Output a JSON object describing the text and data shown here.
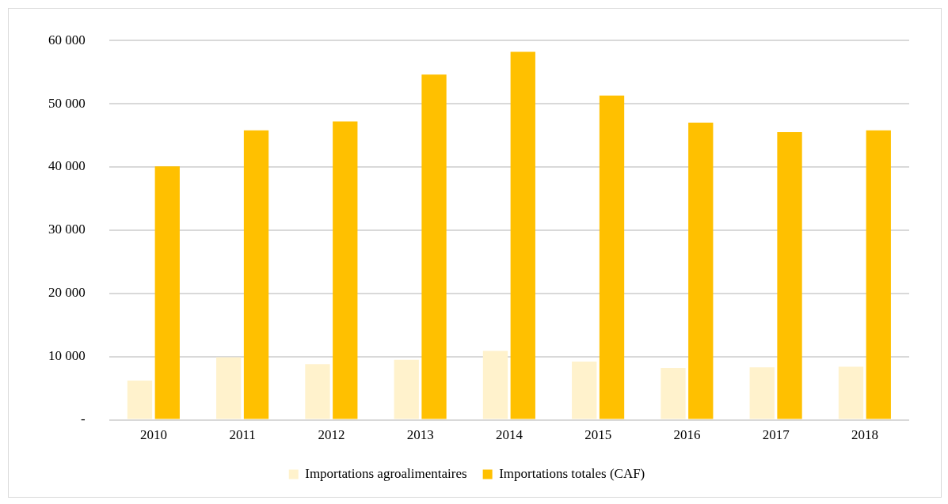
{
  "chart_data": {
    "type": "bar",
    "categories": [
      "2010",
      "2011",
      "2012",
      "2013",
      "2014",
      "2015",
      "2016",
      "2017",
      "2018"
    ],
    "series": [
      {
        "name": "Importations agroalimentaires",
        "color": "#fff2cc",
        "values": [
          6200,
          9900,
          8800,
          9500,
          10900,
          9200,
          8200,
          8300,
          8400
        ]
      },
      {
        "name": "Importations totales (CAF)",
        "color": "#ffc000",
        "values": [
          40100,
          45800,
          47200,
          54600,
          58200,
          51300,
          47000,
          45500,
          45800
        ]
      }
    ],
    "ylim": [
      0,
      60000
    ],
    "yticks": [
      {
        "value": 0,
        "label": "-"
      },
      {
        "value": 10000,
        "label": "10 000"
      },
      {
        "value": 20000,
        "label": "20 000"
      },
      {
        "value": 30000,
        "label": "30 000"
      },
      {
        "value": 40000,
        "label": "40 000"
      },
      {
        "value": 50000,
        "label": "50 000"
      },
      {
        "value": 60000,
        "label": "60 000"
      }
    ],
    "grid": "y",
    "legend": "bottom"
  }
}
